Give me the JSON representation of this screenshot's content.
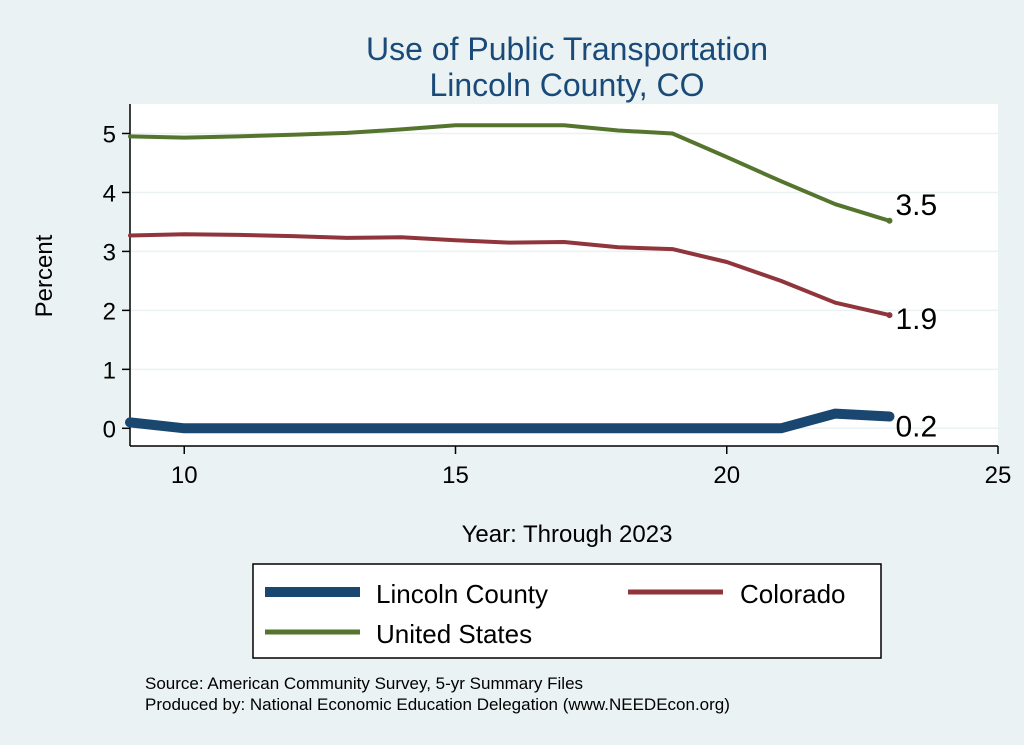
{
  "chart_data": {
    "type": "line",
    "title": "Use of Public Transportation",
    "subtitle": "Lincoln County, CO",
    "xlabel": "Year: Through 2023",
    "ylabel": "Percent",
    "xlim": [
      9,
      25
    ],
    "ylim": [
      -0.3,
      5.5
    ],
    "xticks": [
      10,
      15,
      20,
      25
    ],
    "yticks": [
      0,
      1,
      2,
      3,
      4,
      5
    ],
    "grid": true,
    "legend_position": "bottom",
    "x": [
      9,
      10,
      11,
      12,
      13,
      14,
      15,
      16,
      17,
      18,
      19,
      20,
      21,
      22,
      23
    ],
    "series": [
      {
        "name": "Lincoln County",
        "color": "#1a476f",
        "values": [
          0.1,
          0.0,
          0.0,
          0.0,
          0.0,
          0.0,
          0.0,
          0.0,
          0.0,
          0.0,
          0.0,
          0.0,
          0.0,
          0.25,
          0.2
        ],
        "end_label": "0.2"
      },
      {
        "name": "Colorado",
        "color": "#90353b",
        "values": [
          3.27,
          3.29,
          3.28,
          3.26,
          3.23,
          3.24,
          3.19,
          3.15,
          3.16,
          3.07,
          3.04,
          2.82,
          2.5,
          2.13,
          1.92
        ],
        "end_label": "1.9"
      },
      {
        "name": "United States",
        "color": "#55752f",
        "values": [
          4.95,
          4.93,
          4.95,
          4.98,
          5.01,
          5.07,
          5.14,
          5.14,
          5.14,
          5.05,
          5.0,
          4.6,
          4.19,
          3.8,
          3.52
        ],
        "end_label": "3.5"
      }
    ],
    "notes": [
      "Source: American Community Survey, 5-yr Summary Files",
      "Produced by: National Economic Education Delegation (www.NEEDEcon.org)"
    ]
  }
}
